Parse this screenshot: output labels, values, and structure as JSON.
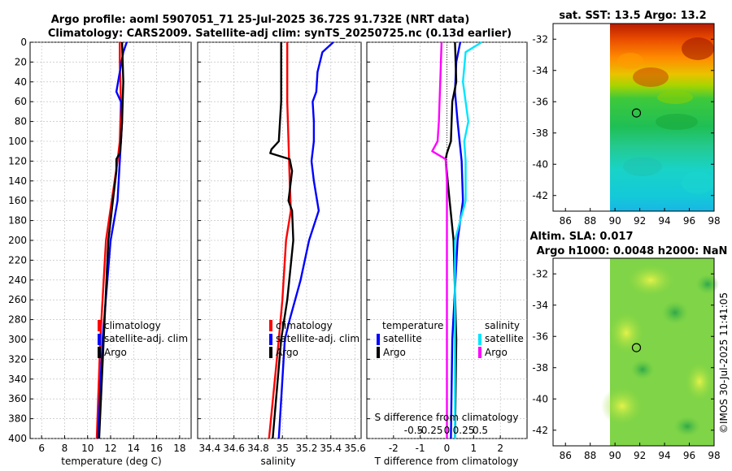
{
  "title": {
    "line1": "Argo profile: aoml 5907051_71 25-Jul-2025 36.72S 91.732E (NRT data)",
    "line2": "Climatology: CARS2009. Satellite-adj clim: synTS_20250725.nc (0.13d earlier)"
  },
  "timestamp": "©IMOS 30-Jul-2025 11:41:05",
  "colors": {
    "climatology": "#ff0000",
    "satellite": "#0000ff",
    "argo": "#000000",
    "sal_satellite": "#00e5ff",
    "sal_argo": "#ff00ff"
  },
  "chart_data": [
    {
      "type": "line",
      "id": "temperature",
      "xlabel": "temperature (deg C)",
      "ylabel": "",
      "xlim": [
        5,
        19
      ],
      "ylim": [
        400,
        0
      ],
      "xticks": [
        6,
        8,
        10,
        12,
        14,
        16,
        18
      ],
      "xtick_labels": [
        "6",
        "8",
        "10",
        "12",
        "14",
        "16",
        "18"
      ],
      "yticks": [
        0,
        20,
        40,
        60,
        80,
        100,
        120,
        140,
        160,
        180,
        200,
        220,
        240,
        260,
        280,
        300,
        320,
        340,
        360,
        380,
        400
      ],
      "ytick_labels": [
        "0",
        "20",
        "40",
        "60",
        "80",
        "100",
        "120",
        "140",
        "160",
        "180",
        "200",
        "220",
        "240",
        "260",
        "280",
        "300",
        "320",
        "340",
        "360",
        "380",
        "400"
      ],
      "legend": [
        "climatology",
        "satellite-adj. clim",
        "Argo"
      ],
      "series": [
        {
          "name": "climatology",
          "color": "#ff0000",
          "depth": [
            0,
            20,
            60,
            100,
            120,
            160,
            200,
            300,
            400
          ],
          "values": [
            12.8,
            12.8,
            12.9,
            12.8,
            12.6,
            12.1,
            11.6,
            11.1,
            10.8
          ]
        },
        {
          "name": "satellite-adj. clim",
          "color": "#0000ff",
          "depth": [
            0,
            10,
            30,
            50,
            60,
            80,
            100,
            120,
            160,
            200,
            300,
            400
          ],
          "values": [
            13.4,
            13.1,
            12.8,
            12.5,
            12.9,
            13.0,
            12.9,
            12.8,
            12.6,
            12.0,
            11.3,
            10.9
          ]
        },
        {
          "name": "Argo",
          "color": "#000000",
          "depth": [
            0,
            40,
            80,
            100,
            112,
            118,
            130,
            160,
            200,
            300,
            400
          ],
          "values": [
            13.0,
            13.1,
            13.0,
            12.9,
            12.8,
            12.5,
            12.5,
            12.2,
            11.8,
            11.4,
            11.0
          ]
        }
      ]
    },
    {
      "type": "line",
      "id": "salinity",
      "xlabel": "salinity",
      "ylabel": "",
      "xlim": [
        34.3,
        35.65
      ],
      "ylim": [
        400,
        0
      ],
      "xticks": [
        34.4,
        34.6,
        34.8,
        35.0,
        35.2,
        35.4,
        35.6
      ],
      "xtick_labels": [
        "34.4",
        "34.6",
        "34.8",
        "35",
        "35.2",
        "35.4",
        "35.6"
      ],
      "legend": [
        "climatology",
        "satellite-adj. clim",
        "Argo"
      ],
      "series": [
        {
          "name": "climatology",
          "color": "#ff0000",
          "depth": [
            0,
            20,
            60,
            100,
            140,
            170,
            200,
            260,
            300,
            400
          ],
          "values": [
            35.04,
            35.04,
            35.04,
            35.05,
            35.06,
            35.07,
            35.03,
            35.0,
            34.97,
            34.89
          ]
        },
        {
          "name": "satellite-adj. clim",
          "color": "#0000ff",
          "depth": [
            0,
            10,
            30,
            50,
            60,
            80,
            100,
            120,
            140,
            170,
            200,
            240,
            280,
            300,
            400
          ],
          "values": [
            35.42,
            35.33,
            35.29,
            35.28,
            35.25,
            35.26,
            35.26,
            35.24,
            35.26,
            35.3,
            35.22,
            35.15,
            35.06,
            35.02,
            34.97
          ]
        },
        {
          "name": "Argo",
          "color": "#000000",
          "depth": [
            0,
            60,
            100,
            108,
            112,
            118,
            130,
            150,
            160,
            170,
            200,
            260,
            300,
            400
          ],
          "values": [
            34.99,
            34.99,
            34.97,
            34.91,
            34.9,
            35.06,
            35.08,
            35.06,
            35.05,
            35.08,
            35.09,
            35.04,
            34.99,
            34.92
          ]
        }
      ]
    },
    {
      "type": "line",
      "id": "difference",
      "xlabel": "T difference from climatology",
      "secondary_xlabel": "S difference from climatology",
      "xlim": [
        -3,
        3
      ],
      "ylim": [
        400,
        0
      ],
      "xticks": [
        -2,
        -1,
        0,
        1,
        2
      ],
      "xtick_labels": [
        "-2",
        "-1",
        "0",
        "1",
        "2"
      ],
      "secondary_xtick_labels": [
        "-0.5",
        "-0.25",
        "0",
        "0.25",
        "0.5"
      ],
      "legend": [
        "temperature",
        "satellite",
        "Argo",
        "salinity",
        "satellite",
        "Argo"
      ],
      "series": [
        {
          "name": "temperature satellite",
          "color": "#0000ff",
          "depth": [
            0,
            20,
            50,
            80,
            120,
            160,
            200,
            300,
            400
          ],
          "values": [
            0.5,
            0.35,
            0.3,
            0.4,
            0.55,
            0.6,
            0.4,
            0.2,
            0.15
          ]
        },
        {
          "name": "temperature Argo",
          "color": "#000000",
          "depth": [
            0,
            40,
            60,
            100,
            112,
            118,
            160,
            200,
            300,
            400
          ],
          "values": [
            0.3,
            0.35,
            0.2,
            0.15,
            0.0,
            -0.05,
            0.1,
            0.25,
            0.35,
            0.3
          ]
        },
        {
          "name": "salinity satellite",
          "color": "#00e5ff",
          "depth": [
            0,
            10,
            40,
            80,
            100,
            120,
            160,
            180,
            200,
            300,
            400
          ],
          "values": [
            1.3,
            0.7,
            0.6,
            0.8,
            0.65,
            0.7,
            0.7,
            0.5,
            0.3,
            0.3,
            0.3
          ]
        },
        {
          "name": "salinity Argo",
          "color": "#ff00ff",
          "depth": [
            0,
            40,
            80,
            100,
            110,
            118,
            140,
            160,
            200,
            300,
            400
          ],
          "values": [
            -0.2,
            -0.25,
            -0.3,
            -0.35,
            -0.55,
            -0.05,
            0.0,
            0.0,
            0.0,
            0.0,
            0.0
          ]
        }
      ]
    },
    {
      "type": "heatmap",
      "id": "sst-map",
      "title": "sat. SST: 13.5 Argo: 13.2",
      "xlim": [
        85,
        98
      ],
      "ylim": [
        -43,
        -31
      ],
      "xticks": [
        86,
        88,
        90,
        92,
        94,
        96,
        98
      ],
      "xtick_labels": [
        "86",
        "88",
        "90",
        "92",
        "94",
        "96",
        "98"
      ],
      "yticks": [
        -32,
        -34,
        -36,
        -38,
        -40,
        -42
      ],
      "ytick_labels": [
        "-32",
        "-34",
        "-36",
        "-38",
        "-40",
        "-42"
      ],
      "data_extent_x": [
        90,
        98
      ],
      "float_position": [
        91.73,
        -36.72
      ]
    },
    {
      "type": "heatmap",
      "id": "sla-map",
      "title": "Altim. SLA: 0.017",
      "subtitle": "Argo h1000: 0.0048 h2000: NaN",
      "xlim": [
        85,
        98
      ],
      "ylim": [
        -43,
        -31
      ],
      "xticks": [
        86,
        88,
        90,
        92,
        94,
        96,
        98
      ],
      "xtick_labels": [
        "86",
        "88",
        "90",
        "92",
        "94",
        "96",
        "98"
      ],
      "yticks": [
        -32,
        -34,
        -36,
        -38,
        -40,
        -42
      ],
      "ytick_labels": [
        "-32",
        "-34",
        "-36",
        "-38",
        "-40",
        "-42"
      ],
      "data_extent_x": [
        90,
        98
      ],
      "float_position": [
        91.73,
        -36.72
      ]
    }
  ]
}
